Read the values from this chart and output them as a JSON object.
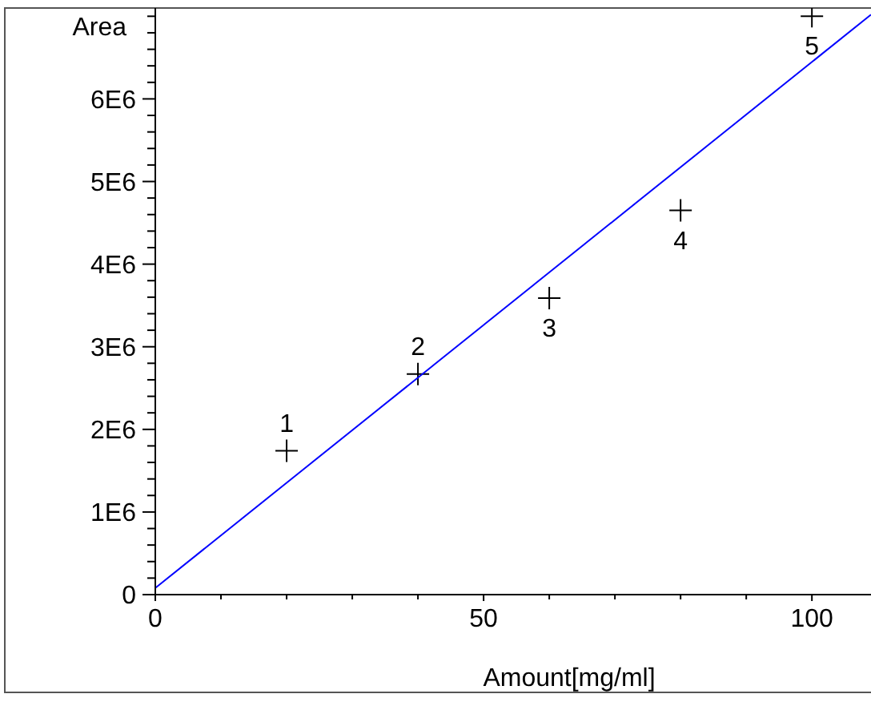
{
  "chart_data": {
    "type": "scatter",
    "xlabel": "Amount[mg/ml]",
    "ylabel": "Area",
    "xlim": [
      0,
      109
    ],
    "ylim": [
      0,
      7100000
    ],
    "xticks": [
      0,
      {
        "value": 10,
        "label": null
      },
      {
        "value": 20,
        "label": null
      },
      {
        "value": 30,
        "label": null
      },
      {
        "value": 40,
        "label": null
      },
      50,
      {
        "value": 60,
        "label": null
      },
      {
        "value": 70,
        "label": null
      },
      {
        "value": 80,
        "label": null
      },
      {
        "value": 90,
        "label": null
      },
      100
    ],
    "yticks": [
      0,
      {
        "value": 200000,
        "label": null
      },
      {
        "value": 400000,
        "label": null
      },
      {
        "value": 600000,
        "label": null
      },
      {
        "value": 800000,
        "label": null
      },
      {
        "value": 1000000,
        "label": "1E6"
      },
      {
        "value": 1200000,
        "label": null
      },
      {
        "value": 1400000,
        "label": null
      },
      {
        "value": 1600000,
        "label": null
      },
      {
        "value": 1800000,
        "label": null
      },
      {
        "value": 2000000,
        "label": "2E6"
      },
      {
        "value": 2200000,
        "label": null
      },
      {
        "value": 2400000,
        "label": null
      },
      {
        "value": 2600000,
        "label": null
      },
      {
        "value": 2800000,
        "label": null
      },
      {
        "value": 3000000,
        "label": "3E6"
      },
      {
        "value": 3200000,
        "label": null
      },
      {
        "value": 3400000,
        "label": null
      },
      {
        "value": 3600000,
        "label": null
      },
      {
        "value": 3800000,
        "label": null
      },
      {
        "value": 4000000,
        "label": "4E6"
      },
      {
        "value": 4200000,
        "label": null
      },
      {
        "value": 4400000,
        "label": null
      },
      {
        "value": 4600000,
        "label": null
      },
      {
        "value": 4800000,
        "label": null
      },
      {
        "value": 5000000,
        "label": "5E6"
      },
      {
        "value": 5200000,
        "label": null
      },
      {
        "value": 5400000,
        "label": null
      },
      {
        "value": 5600000,
        "label": null
      },
      {
        "value": 5800000,
        "label": null
      },
      {
        "value": 6000000,
        "label": "6E6"
      },
      {
        "value": 6200000,
        "label": null
      },
      {
        "value": 6400000,
        "label": null
      },
      {
        "value": 6600000,
        "label": null
      },
      {
        "value": 6800000,
        "label": null
      },
      {
        "value": 7000000,
        "label": null
      }
    ],
    "grid": false,
    "series": [
      {
        "color": "#000000",
        "marker": "cross",
        "x": [
          20,
          40,
          60,
          80,
          100
        ],
        "values": [
          1740000,
          2670000,
          3590000,
          4650000,
          7000000
        ]
      },
      {
        "type": "line",
        "color": "#0000ff",
        "marker": "none",
        "line_style": "solid",
        "x": [
          0,
          109
        ],
        "values": [
          80000,
          7020000
        ]
      }
    ],
    "annotations": [
      {
        "text": "1",
        "x": 20,
        "y": 1740000
      },
      {
        "text": "2",
        "x": 40,
        "y": 2670000
      },
      {
        "text": "3",
        "x": 60,
        "y": 3590000
      },
      {
        "text": "4",
        "x": 80,
        "y": 4650000
      },
      {
        "text": "5",
        "x": 100,
        "y": 7000000
      }
    ]
  }
}
